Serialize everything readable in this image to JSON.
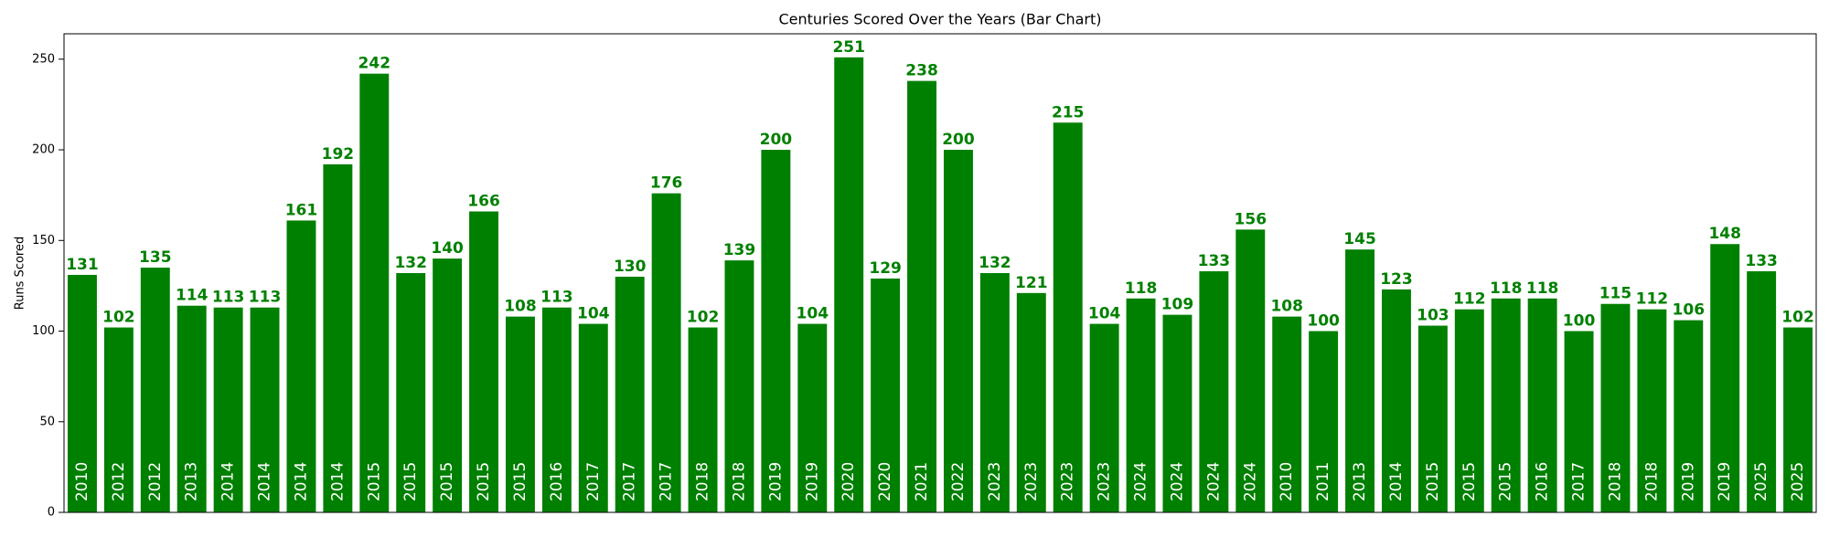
{
  "chart_data": {
    "type": "bar",
    "title": "Centuries Scored Over the Years (Bar Chart)",
    "y_label": "Runs Scored",
    "categories": [
      "2010",
      "2012",
      "2012",
      "2013",
      "2014",
      "2014",
      "2014",
      "2014",
      "2015",
      "2015",
      "2015",
      "2015",
      "2015",
      "2016",
      "2017",
      "2017",
      "2017",
      "2018",
      "2018",
      "2019",
      "2019",
      "2020",
      "2020",
      "2021",
      "2022",
      "2023",
      "2023",
      "2023",
      "2023",
      "2024",
      "2024",
      "2024",
      "2024",
      "2010",
      "2011",
      "2013",
      "2014",
      "2015",
      "2015",
      "2015",
      "2016",
      "2017",
      "2018",
      "2018",
      "2019",
      "2019",
      "2025",
      "2025"
    ],
    "values": [
      131,
      102,
      135,
      114,
      113,
      113,
      161,
      192,
      242,
      132,
      140,
      166,
      108,
      113,
      104,
      130,
      176,
      102,
      139,
      200,
      104,
      251,
      129,
      238,
      200,
      132,
      121,
      215,
      104,
      118,
      109,
      133,
      156,
      108,
      100,
      145,
      123,
      103,
      112,
      118,
      118,
      100,
      115,
      112,
      106,
      148,
      133,
      102
    ],
    "color": "#008000",
    "value_label_color": "#008000",
    "category_label_color": "#ffffff",
    "ylim": [
      0,
      264
    ],
    "yticks": [
      0,
      50,
      100,
      150,
      200,
      250
    ]
  }
}
